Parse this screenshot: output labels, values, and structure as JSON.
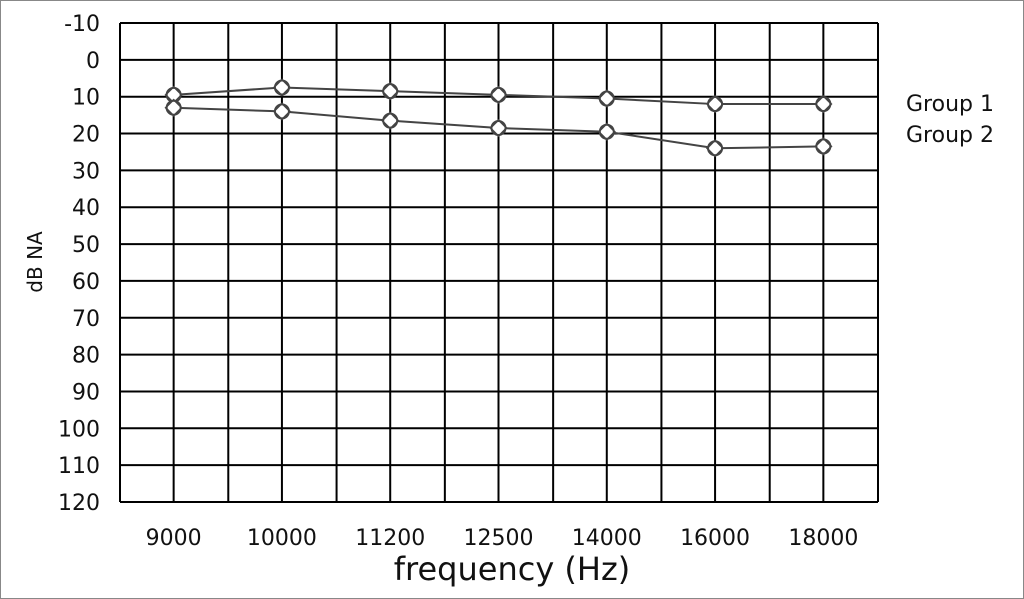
{
  "chart_data": {
    "type": "line",
    "xlabel": "frequency (Hz)",
    "ylabel": "dB NA",
    "categories": [
      "9000",
      "10000",
      "11200",
      "12500",
      "14000",
      "16000",
      "18000"
    ],
    "yticks": [
      -10,
      0,
      10,
      20,
      30,
      40,
      50,
      60,
      70,
      80,
      90,
      100,
      110,
      120
    ],
    "ylim": [
      -10,
      120
    ],
    "y_inverted": true,
    "grid": true,
    "legend_position": "right",
    "series": [
      {
        "name": "Group 1",
        "values": [
          9.5,
          7.5,
          8.5,
          9.5,
          10.5,
          12,
          12
        ]
      },
      {
        "name": "Group 2",
        "values": [
          13,
          14,
          16.5,
          18.5,
          19.5,
          24,
          23.5
        ]
      }
    ],
    "colors": {
      "line": "#444444",
      "grid": "#000000",
      "marker": "#444444"
    }
  }
}
